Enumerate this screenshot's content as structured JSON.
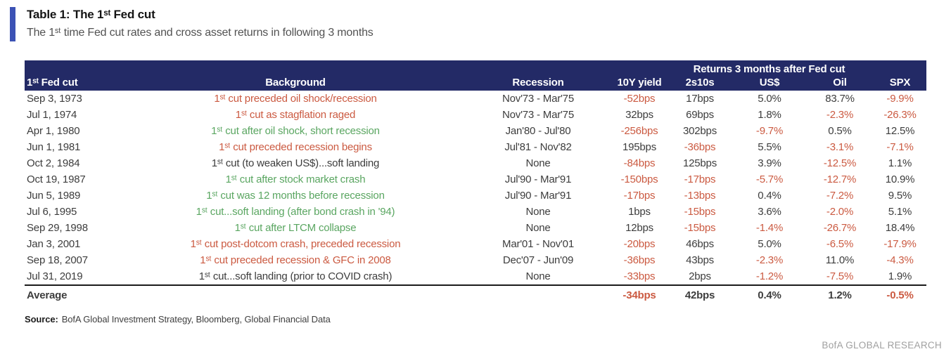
{
  "title": "Table 1: The 1ˢᵗ Fed cut",
  "subtitle": "The 1ˢᵗ time Fed cut rates and cross asset returns in following 3 months",
  "source_label": "Source:",
  "source_text": "BofA Global Investment Strategy, Bloomberg, Global Financial Data",
  "footer": "BofA GLOBAL RESEARCH",
  "palette": {
    "navy": "#232a66",
    "red": "#cb5a41",
    "green": "#5aa661",
    "dark": "#3d3d3d",
    "bar_blue": "#3c52b5",
    "footer_gray": "#a0a0a0"
  },
  "chart_data": {
    "type": "table",
    "title": "Table 1: The 1ˢᵗ Fed cut",
    "subtitle": "The 1ˢᵗ time Fed cut rates and cross asset returns in following 3 months",
    "merged_header": {
      "label": "Returns 3 months after Fed cut",
      "spans_columns": [
        "10Y yield",
        "2s10s",
        "US$",
        "Oil",
        "SPX"
      ]
    },
    "columns": [
      "1ˢᵗ Fed cut",
      "Background",
      "Recession",
      "10Y yield",
      "2s10s",
      "US$",
      "Oil",
      "SPX"
    ],
    "value_color_rule": "negative values rendered in red, others in dark gray",
    "rows": [
      {
        "date": "Sep 3, 1973",
        "background": "1ˢᵗ cut preceded oil shock/recession",
        "background_tone": "red",
        "recession": "Nov'73 - Mar'75",
        "values": [
          "-52bps",
          "17bps",
          "5.0%",
          "83.7%",
          "-9.9%"
        ]
      },
      {
        "date": "Jul 1, 1974",
        "background": "1ˢᵗ cut as stagflation raged",
        "background_tone": "red",
        "recession": "Nov'73 - Mar'75",
        "values": [
          "32bps",
          "69bps",
          "1.8%",
          "-2.3%",
          "-26.3%"
        ]
      },
      {
        "date": "Apr 1, 1980",
        "background": "1ˢᵗ cut after oil shock, short recession",
        "background_tone": "green",
        "recession": "Jan'80 - Jul'80",
        "values": [
          "-256bps",
          "302bps",
          "-9.7%",
          "0.5%",
          "12.5%"
        ]
      },
      {
        "date": "Jun 1, 1981",
        "background": "1ˢᵗ cut preceded recession begins",
        "background_tone": "red",
        "recession": "Jul'81 - Nov'82",
        "values": [
          "195bps",
          "-36bps",
          "5.5%",
          "-3.1%",
          "-7.1%"
        ]
      },
      {
        "date": "Oct 2, 1984",
        "background": "1ˢᵗ cut (to weaken US$)...soft landing",
        "background_tone": "dark",
        "recession": "None",
        "values": [
          "-84bps",
          "125bps",
          "3.9%",
          "-12.5%",
          "1.1%"
        ]
      },
      {
        "date": "Oct 19, 1987",
        "background": "1ˢᵗ cut after stock market crash",
        "background_tone": "green",
        "recession": "Jul'90 - Mar'91",
        "values": [
          "-150bps",
          "-17bps",
          "-5.7%",
          "-12.7%",
          "10.9%"
        ]
      },
      {
        "date": "Jun 5, 1989",
        "background": "1ˢᵗ cut was 12 months before recession",
        "background_tone": "green",
        "recession": "Jul'90 - Mar'91",
        "values": [
          "-17bps",
          "-13bps",
          "0.4%",
          "-7.2%",
          "9.5%"
        ]
      },
      {
        "date": "Jul 6, 1995",
        "background": "1ˢᵗ cut...soft landing (after bond crash in '94)",
        "background_tone": "green",
        "recession": "None",
        "values": [
          "1bps",
          "-15bps",
          "3.6%",
          "-2.0%",
          "5.1%"
        ]
      },
      {
        "date": "Sep 29, 1998",
        "background": "1ˢᵗ cut after LTCM collapse",
        "background_tone": "green",
        "recession": "None",
        "values": [
          "12bps",
          "-15bps",
          "-1.4%",
          "-26.7%",
          "18.4%"
        ]
      },
      {
        "date": "Jan 3, 2001",
        "background": "1ˢᵗ cut post-dotcom crash, preceded recession",
        "background_tone": "red",
        "recession": "Mar'01 - Nov'01",
        "values": [
          "-20bps",
          "46bps",
          "5.0%",
          "-6.5%",
          "-17.9%"
        ]
      },
      {
        "date": "Sep 18, 2007",
        "background": "1ˢᵗ cut preceded recession & GFC in 2008",
        "background_tone": "red",
        "recession": "Dec'07 - Jun'09",
        "values": [
          "-36bps",
          "43bps",
          "-2.3%",
          "11.0%",
          "-4.3%"
        ]
      },
      {
        "date": "Jul 31, 2019",
        "background": "1ˢᵗ cut...soft landing (prior to COVID crash)",
        "background_tone": "dark",
        "recession": "None",
        "values": [
          "-33bps",
          "2bps",
          "-1.2%",
          "-7.5%",
          "1.9%"
        ]
      }
    ],
    "average": {
      "label": "Average",
      "values": [
        "-34bps",
        "42bps",
        "0.4%",
        "1.2%",
        "-0.5%"
      ]
    }
  }
}
